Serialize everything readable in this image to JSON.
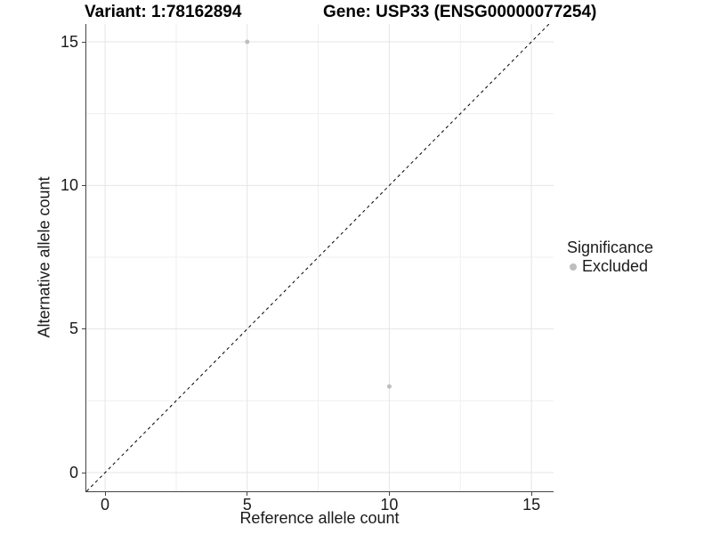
{
  "chart_data": {
    "type": "scatter",
    "titles": {
      "left": "Variant: 1:78162894",
      "right": "Gene: USP33 (ENSG00000077254)"
    },
    "xlabel": "Reference allele count",
    "ylabel": "Alternative allele count",
    "xlim": [
      -0.66,
      15.78
    ],
    "ylim": [
      -0.65,
      15.62
    ],
    "x_ticks": [
      0,
      5,
      10,
      15
    ],
    "y_ticks": [
      0,
      5,
      10,
      15
    ],
    "x_minor_ticks": [
      2.5,
      7.5,
      12.5
    ],
    "y_minor_ticks": [
      2.5,
      7.5,
      12.5
    ],
    "grid": true,
    "background": "#ffffff",
    "series": [
      {
        "name": "Excluded",
        "color": "#bebebe",
        "point_radius": 2.5,
        "points": [
          {
            "x": 5,
            "y": 15
          },
          {
            "x": 10,
            "y": 3
          }
        ]
      }
    ],
    "reference_line": {
      "type": "identity",
      "slope": 1,
      "intercept": 0,
      "style": "dashed",
      "color": "#000000"
    },
    "legend": {
      "title": "Significance",
      "position": "right",
      "items": [
        {
          "label": "Excluded",
          "marker": "circle",
          "marker_color": "#bebebe"
        }
      ]
    },
    "colors": {
      "grid_major": "#e4e4e4",
      "grid_minor": "#efefef",
      "axis": "#444444",
      "text": "#1a1a1a",
      "title": "#000000"
    }
  }
}
